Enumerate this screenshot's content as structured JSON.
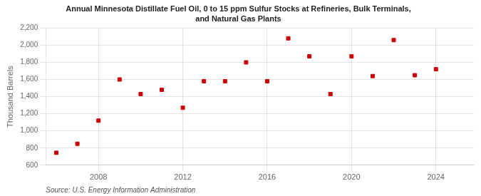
{
  "chart_data": {
    "type": "scatter",
    "title": "Annual Minnesota Distillate Fuel Oil, 0 to 15 ppm Sulfur Stocks at Refineries, Bulk Terminals,",
    "subtitle": "and Natural Gas Plants",
    "ylabel": "Thousand Barrels",
    "annotation": "Source: U.S. Energy Information Administration",
    "x": [
      2006,
      2007,
      2008,
      2009,
      2010,
      2011,
      2012,
      2013,
      2014,
      2015,
      2016,
      2017,
      2018,
      2019,
      2020,
      2021,
      2022,
      2023,
      2024
    ],
    "values": [
      745,
      850,
      1120,
      1600,
      1430,
      1480,
      1270,
      1580,
      1580,
      1800,
      1580,
      2080,
      1870,
      1430,
      1870,
      1640,
      2060,
      1650,
      1720
    ],
    "color": "#cc0000",
    "marker": "square",
    "xlim": [
      2005.5,
      2025.8
    ],
    "xticks": [
      2008,
      2012,
      2016,
      2020,
      2024
    ],
    "ylim": [
      600,
      2200
    ],
    "yticks": [
      600,
      800,
      {
        "value": 1000,
        "label": "1,000"
      },
      {
        "value": 1200,
        "label": "1,200"
      },
      {
        "value": 1400,
        "label": "1,400"
      },
      {
        "value": 1600,
        "label": "1,600"
      },
      {
        "value": 1800,
        "label": "1,800"
      },
      {
        "value": 2000,
        "label": "2,000"
      },
      {
        "value": 2200,
        "label": "2,200"
      }
    ],
    "grid": true
  }
}
